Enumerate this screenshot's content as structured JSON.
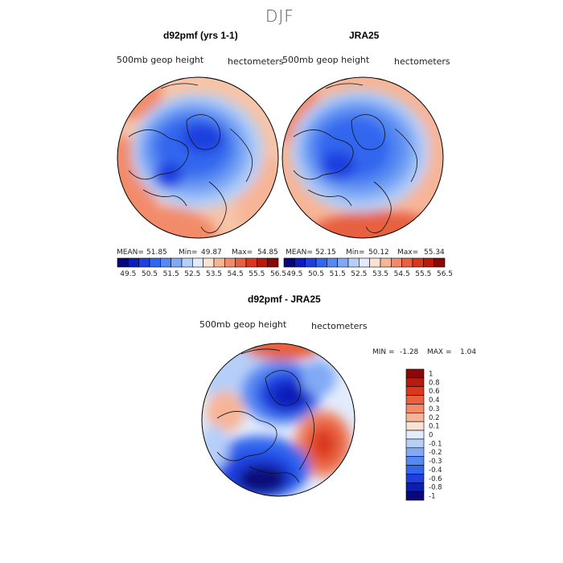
{
  "figure": {
    "season": "DJF",
    "panels": [
      {
        "title": "d92pmf (yrs 1-1)",
        "left_label": "500mb geop height",
        "right_label": "hectometers",
        "stats": {
          "mean_label": "MEAN=",
          "mean": "51.85",
          "min_label": "Min=",
          "min": "49.87",
          "max_label": "Max=",
          "max": "54.85"
        }
      },
      {
        "title": "JRA25",
        "left_label": "500mb geop height",
        "right_label": "hectometers",
        "stats": {
          "mean_label": "MEAN=",
          "mean": "52.15",
          "min_label": "Min=",
          "min": "50.12",
          "max_label": "Max=",
          "max": "55.34"
        }
      },
      {
        "title": "d92pmf - JRA25",
        "left_label": "500mb geop height",
        "right_label": "hectometers",
        "stats": {
          "min_label": "MIN =",
          "min": "-1.28",
          "max_label": "MAX =",
          "max": "1.04"
        }
      }
    ]
  },
  "chart_data": [
    {
      "type": "heatmap",
      "title": "d92pmf (yrs 1-1)",
      "projection": "north polar stereographic",
      "variable": "500mb geop height",
      "units": "hectometers",
      "stats": {
        "mean": 51.85,
        "min": 49.87,
        "max": 54.85
      },
      "colorbar": {
        "orientation": "horizontal",
        "tick_labels": [
          "49.5",
          "50.5",
          "51.5",
          "52.5",
          "53.5",
          "54.5",
          "55.5",
          "56.5"
        ],
        "colors": [
          "#08087a",
          "#0c1db8",
          "#1f3fdf",
          "#3366ee",
          "#5588f2",
          "#80aaf5",
          "#b5cff8",
          "#e2ecfc",
          "#fbe2d3",
          "#f7b597",
          "#f28b6a",
          "#e8603f",
          "#d9381e",
          "#b81a0e",
          "#8a0808"
        ]
      }
    },
    {
      "type": "heatmap",
      "title": "JRA25",
      "projection": "north polar stereographic",
      "variable": "500mb geop height",
      "units": "hectometers",
      "stats": {
        "mean": 52.15,
        "min": 50.12,
        "max": 55.34
      },
      "colorbar": {
        "orientation": "horizontal",
        "tick_labels": [
          "49.5",
          "50.5",
          "51.5",
          "52.5",
          "53.5",
          "54.5",
          "55.5",
          "56.5"
        ],
        "colors": [
          "#08087a",
          "#0c1db8",
          "#1f3fdf",
          "#3366ee",
          "#5588f2",
          "#80aaf5",
          "#b5cff8",
          "#e2ecfc",
          "#fbe2d3",
          "#f7b597",
          "#f28b6a",
          "#e8603f",
          "#d9381e",
          "#b81a0e",
          "#8a0808"
        ]
      }
    },
    {
      "type": "heatmap",
      "title": "d92pmf - JRA25",
      "projection": "north polar stereographic",
      "variable": "500mb geop height difference",
      "units": "hectometers",
      "stats": {
        "min": -1.28,
        "max": 1.04
      },
      "colorbar": {
        "orientation": "vertical",
        "tick_labels": [
          "1",
          "0.8",
          "0.6",
          "0.4",
          "0.3",
          "0.2",
          "0.1",
          "0",
          "-0.1",
          "-0.2",
          "-0.3",
          "-0.4",
          "-0.6",
          "-0.8",
          "-1"
        ],
        "colors": [
          "#8a0808",
          "#b81a0e",
          "#d9381e",
          "#e8603f",
          "#f28b6a",
          "#f7b597",
          "#fbe2d3",
          "#e2ecfc",
          "#b5cff8",
          "#80aaf5",
          "#5588f2",
          "#3366ee",
          "#1f3fdf",
          "#0c1db8",
          "#08087a"
        ]
      }
    }
  ]
}
